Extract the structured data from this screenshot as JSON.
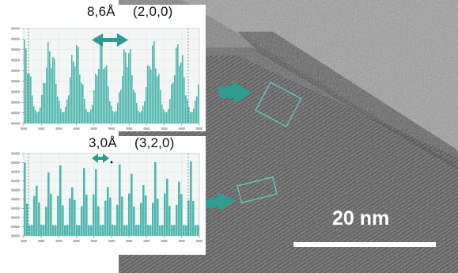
{
  "profile_top": {
    "d_spacing": "8,6Å",
    "hkl": "(2,0,0)"
  },
  "profile_bottom": {
    "d_spacing": "3,0Å",
    "hkl": "(3,2,0)"
  },
  "scale_bar": {
    "label": "20 nm"
  },
  "colors": {
    "profile_fill": "#4fb8ae",
    "arrow": "#2e9c90",
    "roi_box": "#5fd1c6",
    "scale_bar": "#ffffff"
  }
}
